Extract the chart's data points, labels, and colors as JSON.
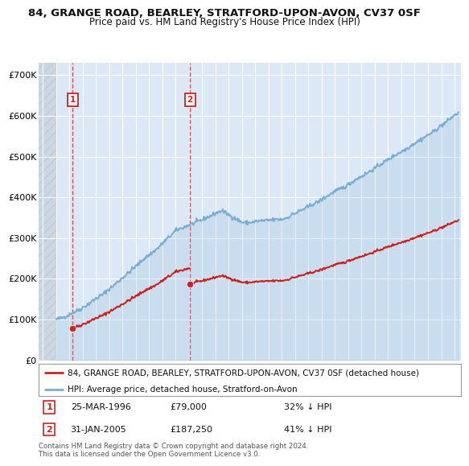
{
  "title1": "84, GRANGE ROAD, BEARLEY, STRATFORD-UPON-AVON, CV37 0SF",
  "title2": "Price paid vs. HM Land Registry's House Price Index (HPI)",
  "ylim": [
    0,
    730000
  ],
  "yticks": [
    0,
    100000,
    200000,
    300000,
    400000,
    500000,
    600000,
    700000
  ],
  "ytick_labels": [
    "£0",
    "£100K",
    "£200K",
    "£300K",
    "£400K",
    "£500K",
    "£600K",
    "£700K"
  ],
  "xlim_start": 1993.7,
  "xlim_end": 2025.5,
  "hpi_color": "#7aadd4",
  "price_color": "#cc2222",
  "sale1_date": 1996.23,
  "sale1_price": 79000,
  "sale1_label": "1",
  "sale2_date": 2005.08,
  "sale2_price": 187250,
  "sale2_label": "2",
  "legend_price_label": "84, GRANGE ROAD, BEARLEY, STRATFORD-UPON-AVON, CV37 0SF (detached house)",
  "legend_hpi_label": "HPI: Average price, detached house, Stratford-on-Avon",
  "table_row1": [
    "1",
    "25-MAR-1996",
    "£79,000",
    "32% ↓ HPI"
  ],
  "table_row2": [
    "2",
    "31-JAN-2005",
    "£187,250",
    "41% ↓ HPI"
  ],
  "footer": "Contains HM Land Registry data © Crown copyright and database right 2024.\nThis data is licensed under the Open Government Licence v3.0.",
  "background_plot": "#dce8f5",
  "grid_color": "#ffffff",
  "title_fontsize": 9.5,
  "subtitle_fontsize": 8.5
}
